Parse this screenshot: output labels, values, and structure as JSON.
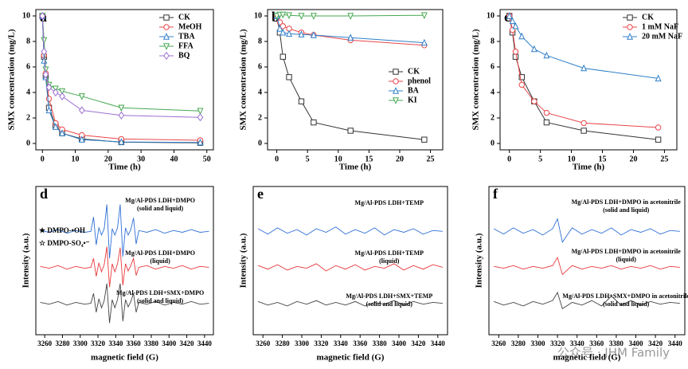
{
  "watermark": "公众号 · JHM Family",
  "chart_data": [
    {
      "type": "line",
      "label": "a",
      "ylabel": "SMX concentration (mg/L)",
      "xlabel": "Time (h)",
      "x": [
        0,
        0.5,
        1,
        2,
        4,
        6,
        12,
        24,
        48
      ],
      "xlim": [
        -2,
        52
      ],
      "xticks": [
        0,
        10,
        20,
        30,
        40,
        50
      ],
      "ylim": [
        -0.5,
        10.5
      ],
      "yticks": [
        0,
        2,
        4,
        6,
        8,
        10
      ],
      "legend": "upper right",
      "series": [
        {
          "name": "CK",
          "color": "#333333",
          "marker": "square",
          "values": [
            10,
            6.8,
            5.3,
            2.8,
            1.4,
            0.8,
            0.35,
            0.1,
            0.05
          ]
        },
        {
          "name": "MeOH",
          "color": "#e8474a",
          "marker": "circle",
          "values": [
            10,
            6.9,
            5.5,
            3.5,
            1.6,
            1.1,
            0.65,
            0.35,
            0.25
          ]
        },
        {
          "name": "TBA",
          "color": "#2f7fc8",
          "marker": "triangle-up",
          "values": [
            10,
            6.5,
            5.2,
            2.6,
            1.3,
            0.8,
            0.3,
            0.12,
            0.08
          ]
        },
        {
          "name": "FFA",
          "color": "#46a851",
          "marker": "triangle-down",
          "values": [
            10,
            8.1,
            5.8,
            4.6,
            4.3,
            4.1,
            3.7,
            2.8,
            2.55
          ]
        },
        {
          "name": "BQ",
          "color": "#9b6fd0",
          "marker": "diamond",
          "values": [
            10,
            7.2,
            5.4,
            4.4,
            4.0,
            3.7,
            2.6,
            2.2,
            2.05
          ]
        }
      ]
    },
    {
      "type": "line",
      "label": "b",
      "ylabel": "SMX concentration (mg/L)",
      "xlabel": "Time (h)",
      "x": [
        0,
        0.5,
        1,
        2,
        4,
        6,
        12,
        24
      ],
      "xlim": [
        -1.5,
        27
      ],
      "xticks": [
        0,
        5,
        10,
        15,
        20,
        25
      ],
      "ylim": [
        -0.5,
        10.5
      ],
      "yticks": [
        0,
        2,
        4,
        6,
        8,
        10
      ],
      "legend": "center right",
      "series": [
        {
          "name": "CK",
          "color": "#333333",
          "marker": "square",
          "values": [
            10,
            8.7,
            6.8,
            5.2,
            3.3,
            1.65,
            1.0,
            0.3
          ]
        },
        {
          "name": "phenol",
          "color": "#e8474a",
          "marker": "circle",
          "values": [
            10,
            9.5,
            9.2,
            9.0,
            8.7,
            8.5,
            8.1,
            7.7
          ]
        },
        {
          "name": "BA",
          "color": "#2f7fc8",
          "marker": "triangle-up",
          "values": [
            10,
            9.0,
            8.7,
            8.6,
            8.55,
            8.5,
            8.3,
            7.9
          ]
        },
        {
          "name": "KI",
          "color": "#46a851",
          "marker": "triangle-down",
          "values": [
            10,
            10.1,
            10.1,
            10.05,
            10.0,
            10.0,
            10.0,
            10.05
          ]
        }
      ]
    },
    {
      "type": "line",
      "label": "c",
      "ylabel": "SMX concentration (mg/L)",
      "xlabel": "Time (h)",
      "x": [
        0,
        0.5,
        1,
        2,
        4,
        6,
        12,
        24
      ],
      "xlim": [
        -1.5,
        27
      ],
      "xticks": [
        0,
        5,
        10,
        15,
        20,
        25
      ],
      "ylim": [
        -0.5,
        10.5
      ],
      "yticks": [
        0,
        2,
        4,
        6,
        8,
        10
      ],
      "legend": "upper right",
      "series": [
        {
          "name": "CK",
          "color": "#333333",
          "marker": "square",
          "values": [
            10,
            8.7,
            6.8,
            5.2,
            3.3,
            1.65,
            1.0,
            0.3
          ]
        },
        {
          "name": "1 mM NaF",
          "color": "#e8474a",
          "marker": "circle",
          "values": [
            10,
            8.9,
            7.2,
            4.6,
            3.3,
            2.4,
            1.6,
            1.25
          ]
        },
        {
          "name": "20 mM NaF",
          "color": "#2f7fc8",
          "marker": "triangle-up",
          "values": [
            10,
            9.6,
            9.2,
            8.4,
            7.4,
            6.9,
            5.9,
            5.1
          ]
        }
      ]
    },
    {
      "type": "spectrum",
      "label": "d",
      "ylabel": "Intensity (a.u.)",
      "xlabel": "magnetic field (G)",
      "x": [
        3255,
        3265,
        3275,
        3285,
        3295,
        3305,
        3312,
        3315,
        3318,
        3321,
        3324,
        3327,
        3330,
        3333,
        3336,
        3339,
        3342,
        3345,
        3348,
        3351,
        3354,
        3357,
        3360,
        3363,
        3366,
        3375,
        3385,
        3395,
        3405,
        3415,
        3425,
        3435,
        3445
      ],
      "xlim": [
        3250,
        3450
      ],
      "xticks": [
        3260,
        3280,
        3300,
        3320,
        3340,
        3360,
        3380,
        3400,
        3420,
        3440
      ],
      "ylim": [
        -3.5,
        13
      ],
      "legend_texts": [
        "★ DMPO-•OH",
        "☆ DMPO-SO₄•⁻"
      ],
      "annotations": [
        [
          "Mg/Al-PDS LDH+DMPO",
          "(solid and liquid)"
        ],
        [
          "Mg/Al-PDS LDH+DMPO",
          "(liquid)"
        ],
        [
          "Mg/Al-PDS LDH+SMX+DMPO",
          "(solid and liquid)"
        ]
      ],
      "series": [
        {
          "color": "#2f6fd6",
          "values": [
            8.1,
            7.9,
            8.2,
            7.8,
            8.1,
            7.9,
            8.0,
            9.6,
            6.5,
            8.4,
            7.6,
            8.3,
            11.0,
            5.0,
            8.3,
            7.6,
            8.4,
            11.0,
            5.2,
            8.4,
            7.6,
            8.2,
            9.5,
            6.6,
            8.1,
            7.9,
            8.2,
            7.8,
            8.1,
            7.9,
            8.2,
            7.9,
            8.0
          ]
        },
        {
          "color": "#e8383c",
          "values": [
            4.1,
            3.9,
            4.2,
            3.8,
            4.1,
            3.9,
            4.0,
            5.0,
            3.0,
            4.5,
            3.5,
            4.3,
            6.3,
            1.8,
            4.4,
            3.5,
            4.4,
            6.2,
            2.0,
            4.4,
            3.6,
            4.2,
            5.0,
            3.1,
            4.0,
            4.2,
            3.8,
            4.1,
            3.9,
            4.2,
            3.8,
            4.1,
            4.0
          ]
        },
        {
          "color": "#444444",
          "values": [
            0.1,
            -0.1,
            0.2,
            -0.2,
            0.1,
            -0.1,
            0,
            1.1,
            -1.0,
            0.5,
            -0.5,
            0.3,
            2.2,
            -2.2,
            0.4,
            -0.5,
            0.4,
            2.2,
            -2.0,
            0.4,
            -0.4,
            0.2,
            1.1,
            -1.0,
            0.1,
            -0.1,
            0.2,
            -0.2,
            0.1,
            -0.1,
            0.2,
            -0.1,
            0
          ]
        }
      ]
    },
    {
      "type": "spectrum",
      "label": "e",
      "ylabel": "Intensity (a.u.)",
      "xlabel": "magnetic field (G)",
      "x": [
        3255,
        3265,
        3275,
        3285,
        3295,
        3305,
        3315,
        3325,
        3335,
        3345,
        3355,
        3365,
        3375,
        3385,
        3395,
        3405,
        3415,
        3425,
        3435,
        3445
      ],
      "xlim": [
        3250,
        3450
      ],
      "xticks": [
        3260,
        3280,
        3300,
        3320,
        3340,
        3360,
        3380,
        3400,
        3420,
        3440
      ],
      "ylim": [
        -3.5,
        13
      ],
      "annotations": [
        [
          "Mg/Al-PDS LDH+TEMP"
        ],
        [
          "Mg/Al-PDS LDH+TEMP",
          "(liquid)"
        ],
        [
          "Mg/Al-PDS LDH+SMX+TEMP",
          "(solid and liquid)"
        ]
      ],
      "series": [
        {
          "color": "#2f6fd6",
          "values": [
            8.3,
            7.7,
            8.4,
            7.8,
            8.2,
            7.6,
            8.3,
            7.9,
            8.5,
            7.7,
            8.2,
            7.8,
            8.4,
            7.6,
            8.2,
            7.9,
            8.3,
            7.7,
            8.1,
            8.0
          ]
        },
        {
          "color": "#e8383c",
          "values": [
            4.2,
            3.8,
            4.3,
            3.7,
            4.1,
            3.9,
            4.4,
            3.6,
            4.2,
            3.8,
            4.3,
            3.7,
            4.1,
            3.9,
            4.4,
            3.7,
            4.2,
            3.8,
            4.3,
            4.0
          ]
        },
        {
          "color": "#444444",
          "values": [
            0.2,
            -0.2,
            0.1,
            -0.3,
            0.2,
            -0.1,
            0.3,
            -0.2,
            0.1,
            -0.2,
            0.2,
            -0.3,
            0.1,
            -0.1,
            0.3,
            -0.2,
            0.2,
            -0.1,
            0.1,
            0
          ]
        }
      ]
    },
    {
      "type": "spectrum",
      "label": "f",
      "ylabel": "Intensity (a.u.)",
      "xlabel": "magnetic field (G)",
      "x": [
        3255,
        3265,
        3275,
        3285,
        3295,
        3305,
        3315,
        3320,
        3325,
        3335,
        3345,
        3355,
        3365,
        3375,
        3385,
        3395,
        3405,
        3415,
        3425,
        3435,
        3445
      ],
      "xlim": [
        3250,
        3450
      ],
      "xticks": [
        3260,
        3280,
        3300,
        3320,
        3340,
        3360,
        3380,
        3400,
        3420,
        3440
      ],
      "ylim": [
        -3.5,
        13
      ],
      "annotations": [
        [
          "Mg/Al-PDS LDH+DMPO in acetonitrile",
          "(solid and liquid)"
        ],
        [
          "Mg/Al-PDS LDH+DMPO in acetonitrile",
          "(liquid)"
        ],
        [
          "Mg/Al-PDS LDH+SMX+DMPO  in acetonitrile",
          "(solid and liquid)"
        ]
      ],
      "series": [
        {
          "color": "#2f6fd6",
          "values": [
            8.3,
            7.7,
            8.4,
            7.8,
            8.2,
            7.6,
            8.3,
            9.4,
            6.8,
            8.4,
            7.7,
            8.2,
            7.8,
            8.4,
            7.6,
            8.2,
            7.9,
            8.3,
            7.7,
            8.1,
            8.0
          ]
        },
        {
          "color": "#e8383c",
          "values": [
            4.1,
            3.9,
            4.2,
            3.8,
            4.1,
            3.9,
            4.2,
            5.1,
            3.2,
            4.2,
            3.8,
            4.1,
            3.9,
            4.2,
            3.8,
            4.1,
            3.9,
            4.2,
            3.8,
            4.1,
            4.0
          ]
        },
        {
          "color": "#444444",
          "values": [
            0.2,
            -0.2,
            0.1,
            -0.3,
            0.2,
            -0.1,
            0.3,
            1.2,
            -0.6,
            0.1,
            -0.2,
            0.3,
            -0.3,
            0.8,
            -0.2,
            0.3,
            -0.2,
            0.2,
            -0.1,
            0.1,
            0
          ]
        }
      ]
    }
  ]
}
